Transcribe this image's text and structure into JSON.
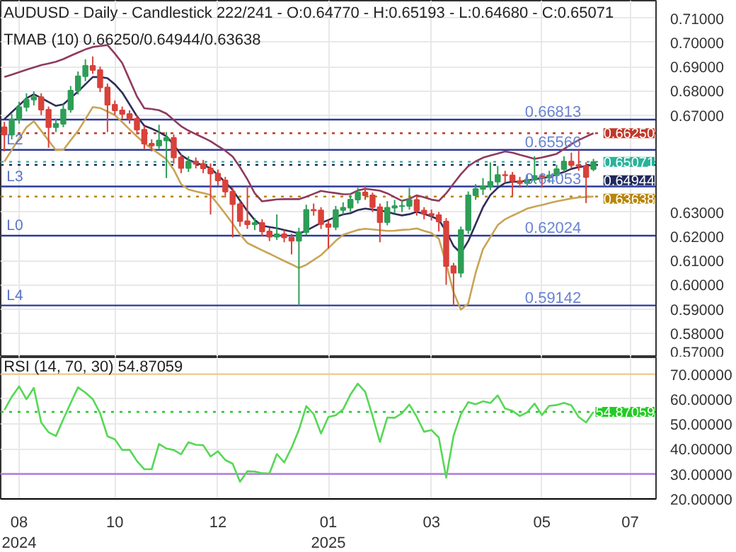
{
  "chart_data": [
    {
      "type": "candlestick",
      "title": "AUDUSD - Daily - Candlestick    222/241 - O:0.64770 - H:0.65193 - L:0.64680 - C:0.65071",
      "annotations": [
        "TMAB (10)   0.66250/0.64944/0.63638",
        {
          "text": "L2",
          "y": 0.65566
        },
        {
          "text": "L3",
          "y": 0.64053
        },
        {
          "text": "L0",
          "y": 0.62024
        },
        {
          "text": "L4",
          "y": 0.59142
        }
      ],
      "categories": [
        null,
        null,
        null,
        null,
        null,
        null,
        null,
        null,
        null,
        null,
        null,
        null,
        null,
        null,
        null,
        null,
        null,
        null,
        null,
        null,
        null,
        null,
        null,
        null,
        null,
        null,
        null,
        null,
        null,
        null,
        null,
        null,
        null,
        null,
        null,
        null,
        null,
        null,
        null,
        null,
        null,
        null,
        null,
        null,
        null,
        null,
        null,
        null,
        null,
        null,
        null,
        null,
        null,
        null,
        null,
        null,
        null,
        null,
        null,
        null,
        null,
        null,
        null,
        null,
        null,
        null,
        null,
        null,
        null,
        null,
        null,
        null,
        null,
        null,
        null,
        null,
        null,
        null,
        null,
        null,
        null,
        null,
        null,
        null,
        null,
        null
      ],
      "ohlc": [
        [
          0.665,
          0.6672,
          0.655,
          0.6619
        ],
        [
          0.6619,
          0.6705,
          0.66,
          0.6682
        ],
        [
          0.6682,
          0.6755,
          0.6665,
          0.6733
        ],
        [
          0.6733,
          0.679,
          0.6715,
          0.6764
        ],
        [
          0.6764,
          0.6798,
          0.674,
          0.6774
        ],
        [
          0.6774,
          0.679,
          0.67,
          0.6722
        ],
        [
          0.6722,
          0.6735,
          0.6565,
          0.665
        ],
        [
          0.665,
          0.6685,
          0.663,
          0.6664
        ],
        [
          0.6664,
          0.6745,
          0.665,
          0.6723
        ],
        [
          0.6723,
          0.682,
          0.671,
          0.6801
        ],
        [
          0.6801,
          0.688,
          0.6785,
          0.686
        ],
        [
          0.686,
          0.693,
          0.684,
          0.6903
        ],
        [
          0.6903,
          0.6942,
          0.687,
          0.6886
        ],
        [
          0.6886,
          0.69,
          0.6795,
          0.6814
        ],
        [
          0.6814,
          0.683,
          0.663,
          0.6743
        ],
        [
          0.6743,
          0.676,
          0.67,
          0.6719
        ],
        [
          0.6719,
          0.6735,
          0.6685,
          0.6705
        ],
        [
          0.6705,
          0.672,
          0.6665,
          0.6685
        ],
        [
          0.6685,
          0.67,
          0.662,
          0.664
        ],
        [
          0.664,
          0.6655,
          0.656,
          0.6582
        ],
        [
          0.6582,
          0.66,
          0.655,
          0.6574
        ],
        [
          0.6574,
          0.666,
          0.656,
          0.6595
        ],
        [
          0.6595,
          0.663,
          0.644,
          0.6606
        ],
        [
          0.6606,
          0.662,
          0.65,
          0.6525
        ],
        [
          0.6525,
          0.654,
          0.646,
          0.6481
        ],
        [
          0.6481,
          0.653,
          0.6465,
          0.6508
        ],
        [
          0.6508,
          0.6525,
          0.648,
          0.6499
        ],
        [
          0.6499,
          0.6515,
          0.646,
          0.648
        ],
        [
          0.648,
          0.65,
          0.629,
          0.6459
        ],
        [
          0.6459,
          0.6475,
          0.641,
          0.643
        ],
        [
          0.643,
          0.6445,
          0.636,
          0.6384
        ],
        [
          0.6384,
          0.64,
          0.6195,
          0.6332
        ],
        [
          0.6332,
          0.6345,
          0.624,
          0.6262
        ],
        [
          0.6262,
          0.641,
          0.623,
          0.6249
        ],
        [
          0.6249,
          0.6275,
          0.6225,
          0.6255
        ],
        [
          0.6255,
          0.627,
          0.62,
          0.622
        ],
        [
          0.622,
          0.6235,
          0.618,
          0.6198
        ],
        [
          0.6198,
          0.629,
          0.6185,
          0.6208
        ],
        [
          0.6208,
          0.6225,
          0.6175,
          0.6195
        ],
        [
          0.6195,
          0.621,
          0.6125,
          0.6181
        ],
        [
          0.6181,
          0.6235,
          0.5914,
          0.6217
        ],
        [
          0.6217,
          0.633,
          0.6205,
          0.6309
        ],
        [
          0.6309,
          0.6335,
          0.6285,
          0.6307
        ],
        [
          0.6307,
          0.632,
          0.623,
          0.625
        ],
        [
          0.625,
          0.6265,
          0.615,
          0.6238
        ],
        [
          0.6238,
          0.6325,
          0.6225,
          0.6308
        ],
        [
          0.6308,
          0.634,
          0.629,
          0.6318
        ],
        [
          0.6318,
          0.637,
          0.63,
          0.6351
        ],
        [
          0.6351,
          0.64,
          0.6335,
          0.6381
        ],
        [
          0.6381,
          0.641,
          0.635,
          0.6369
        ],
        [
          0.6369,
          0.638,
          0.63,
          0.632
        ],
        [
          0.632,
          0.6335,
          0.6175,
          0.6258
        ],
        [
          0.6258,
          0.6345,
          0.6245,
          0.6318
        ],
        [
          0.6318,
          0.635,
          0.6295,
          0.6324
        ],
        [
          0.6324,
          0.635,
          0.63,
          0.6325
        ],
        [
          0.6325,
          0.64,
          0.631,
          0.635
        ],
        [
          0.635,
          0.6365,
          0.6285,
          0.6306
        ],
        [
          0.6306,
          0.632,
          0.627,
          0.6292
        ],
        [
          0.6292,
          0.631,
          0.6265,
          0.6287
        ],
        [
          0.6287,
          0.63,
          0.622,
          0.6261
        ],
        [
          0.6261,
          0.6275,
          0.6,
          0.6077
        ],
        [
          0.6077,
          0.609,
          0.5914,
          0.6049
        ],
        [
          0.6049,
          0.624,
          0.603,
          0.6226
        ],
        [
          0.6226,
          0.6385,
          0.621,
          0.6369
        ],
        [
          0.6369,
          0.6415,
          0.635,
          0.6395
        ],
        [
          0.6395,
          0.644,
          0.637,
          0.6407
        ],
        [
          0.6407,
          0.6505,
          0.639,
          0.6425
        ],
        [
          0.6425,
          0.649,
          0.641,
          0.6453
        ],
        [
          0.6453,
          0.647,
          0.642,
          0.6451
        ],
        [
          0.6451,
          0.6465,
          0.6365,
          0.6428
        ],
        [
          0.6428,
          0.6445,
          0.64,
          0.6419
        ],
        [
          0.6419,
          0.6455,
          0.6405,
          0.6434
        ],
        [
          0.6434,
          0.653,
          0.642,
          0.6449
        ],
        [
          0.6449,
          0.646,
          0.64,
          0.6442
        ],
        [
          0.6442,
          0.647,
          0.642,
          0.6451
        ],
        [
          0.6451,
          0.6495,
          0.6435,
          0.6477
        ],
        [
          0.6477,
          0.653,
          0.6465,
          0.6508
        ],
        [
          0.6508,
          0.6545,
          0.648,
          0.6494
        ],
        [
          0.6494,
          0.6555,
          0.647,
          0.649
        ],
        [
          0.649,
          0.6505,
          0.6337,
          0.6444
        ],
        [
          0.6477,
          0.65193,
          0.6468,
          0.65071
        ],
        null,
        null,
        null,
        null,
        null
      ],
      "colors": [
        "#d9413a",
        "#2e9e57",
        "#2e9e57",
        "#2e9e57",
        "#2e9e57",
        "#d9413a",
        "#d9413a",
        "#2e9e57",
        "#2e9e57",
        "#2e9e57",
        "#2e9e57",
        "#2e9e57",
        "#d9413a",
        "#d9413a",
        "#d9413a",
        "#d9413a",
        "#d9413a",
        "#d9413a",
        "#d9413a",
        "#d9413a",
        "#d9413a",
        "#2e9e57",
        "#2e9e57",
        "#d9413a",
        "#d9413a",
        "#2e9e57",
        "#d9413a",
        "#d9413a",
        "#d9413a",
        "#d9413a",
        "#d9413a",
        "#d9413a",
        "#d9413a",
        "#d9413a",
        "#2e9e57",
        "#d9413a",
        "#d9413a",
        "#2e9e57",
        "#d9413a",
        "#d9413a",
        "#2e9e57",
        "#2e9e57",
        "#d9413a",
        "#d9413a",
        "#d9413a",
        "#2e9e57",
        "#2e9e57",
        "#2e9e57",
        "#2e9e57",
        "#d9413a",
        "#d9413a",
        "#d9413a",
        "#2e9e57",
        "#2e9e57",
        "#2e9e57",
        "#2e9e57",
        "#d9413a",
        "#d9413a",
        "#d9413a",
        "#d9413a",
        "#d9413a",
        "#d9413a",
        "#2e9e57",
        "#2e9e57",
        "#2e9e57",
        "#2e9e57",
        "#2e9e57",
        "#2e9e57",
        "#d9413a",
        "#d9413a",
        "#d9413a",
        "#2e9e57",
        "#2e9e57",
        "#d9413a",
        "#2e9e57",
        "#2e9e57",
        "#2e9e57",
        "#d9413a",
        "#d9413a",
        "#d9413a",
        "#2e9e57",
        null,
        null,
        null,
        null,
        null
      ],
      "series": [
        {
          "type": "line",
          "color": "#8e3b5e",
          "values": [
            0.6857,
            0.6867,
            0.6877,
            0.6887,
            0.6897,
            0.6906,
            0.6913,
            0.692,
            0.6931,
            0.6945,
            0.6958,
            0.6971,
            0.6981,
            0.6985,
            0.6989,
            0.6954,
            0.6915,
            0.6846,
            0.6777,
            0.6728,
            0.6725,
            0.672,
            0.6706,
            0.668,
            0.6654,
            0.6636,
            0.6621,
            0.6607,
            0.6592,
            0.6572,
            0.6553,
            0.6529,
            0.6485,
            0.6435,
            0.6377,
            0.6344,
            0.6348,
            0.6352,
            0.6353,
            0.6353,
            0.6353,
            0.6363,
            0.6375,
            0.6387,
            0.6382,
            0.6378,
            0.6373,
            0.6374,
            0.6389,
            0.6396,
            0.6392,
            0.6388,
            0.6377,
            0.6361,
            0.6346,
            0.6354,
            0.6369,
            0.6361,
            0.6351,
            0.6346,
            0.6377,
            0.6417,
            0.6456,
            0.6489,
            0.6509,
            0.6524,
            0.6533,
            0.6541,
            0.655,
            0.6545,
            0.6536,
            0.6528,
            0.6519,
            0.6525,
            0.6532,
            0.654,
            0.656,
            0.658,
            0.6597,
            0.6611,
            0.6625,
            null,
            null,
            null,
            null,
            null
          ]
        },
        {
          "type": "line",
          "color": "#2d2d5a",
          "values": [
            0.6683,
            0.6712,
            0.674,
            0.6769,
            0.6786,
            0.6771,
            0.6754,
            0.6738,
            0.6744,
            0.6771,
            0.6797,
            0.6827,
            0.6857,
            0.6857,
            0.6852,
            0.6827,
            0.6793,
            0.6744,
            0.6695,
            0.6656,
            0.6644,
            0.663,
            0.6612,
            0.6578,
            0.6535,
            0.6515,
            0.6503,
            0.6493,
            0.6481,
            0.6452,
            0.6423,
            0.6391,
            0.6347,
            0.6304,
            0.6267,
            0.6243,
            0.6238,
            0.6233,
            0.6226,
            0.6219,
            0.6211,
            0.6223,
            0.6239,
            0.6255,
            0.6267,
            0.628,
            0.629,
            0.6295,
            0.6308,
            0.6314,
            0.631,
            0.6307,
            0.63,
            0.6292,
            0.6286,
            0.6291,
            0.6301,
            0.6292,
            0.6282,
            0.6268,
            0.622,
            0.616,
            0.613,
            0.618,
            0.625,
            0.632,
            0.637,
            0.64,
            0.642,
            0.6425,
            0.6425,
            0.643,
            0.6435,
            0.644,
            0.6445,
            0.6455,
            0.6465,
            0.6478,
            0.6485,
            0.649,
            0.64944,
            null,
            null,
            null,
            null,
            null
          ]
        },
        {
          "type": "line",
          "color": "#c9a454",
          "values": [
            0.6508,
            0.6556,
            0.6603,
            0.665,
            0.6675,
            0.6635,
            0.6595,
            0.6555,
            0.6556,
            0.6596,
            0.6635,
            0.6683,
            0.6733,
            0.6729,
            0.6715,
            0.67,
            0.6671,
            0.6641,
            0.6612,
            0.6584,
            0.6562,
            0.654,
            0.6518,
            0.6475,
            0.6415,
            0.6393,
            0.6385,
            0.6378,
            0.637,
            0.6332,
            0.6293,
            0.6252,
            0.6208,
            0.6172,
            0.6157,
            0.6142,
            0.6128,
            0.6113,
            0.6098,
            0.6084,
            0.6069,
            0.6082,
            0.6102,
            0.6122,
            0.6151,
            0.6181,
            0.6206,
            0.6216,
            0.6226,
            0.6231,
            0.6228,
            0.6225,
            0.6222,
            0.6223,
            0.6226,
            0.6228,
            0.6232,
            0.6222,
            0.6213,
            0.619,
            0.6086,
            0.5969,
            0.5897,
            0.5923,
            0.6049,
            0.6147,
            0.6196,
            0.6246,
            0.627,
            0.6285,
            0.6299,
            0.6314,
            0.6322,
            0.6329,
            0.6337,
            0.6344,
            0.635,
            0.6356,
            0.636,
            0.6362,
            0.63638,
            null,
            null,
            null,
            null,
            null
          ]
        }
      ],
      "ylim": [
        0.57,
        0.7172
      ],
      "yticks": [
        {
          "value": 0.57,
          "label": "0.57000"
        },
        {
          "value": 0.58,
          "label": "0.58000"
        },
        {
          "value": 0.59,
          "label": "0.59000"
        },
        {
          "value": 0.6,
          "label": "0.60000"
        },
        {
          "value": 0.61,
          "label": "0.61000"
        },
        {
          "value": 0.62,
          "label": "0.62000"
        },
        {
          "value": 0.63,
          "label": "0.63000"
        },
        {
          "value": 0.67,
          "label": "0.67000"
        },
        {
          "value": 0.68,
          "label": "0.68000"
        },
        {
          "value": 0.69,
          "label": "0.69000"
        },
        {
          "value": 0.7,
          "label": "0.70000"
        },
        {
          "value": 0.71,
          "label": "0.71000"
        }
      ],
      "ref_lines": [
        {
          "axis": "y",
          "value": 0.66813,
          "label": "0.66813",
          "color": "#2c3a9a",
          "line_style": "solid"
        },
        {
          "axis": "y",
          "value": 0.65566,
          "label": "0.65566",
          "color": "#2c3a9a",
          "line_style": "solid"
        },
        {
          "axis": "y",
          "value": 0.64053,
          "label": "0.64053",
          "color": "#2c3a9a",
          "line_style": "solid"
        },
        {
          "axis": "y",
          "value": 0.62024,
          "label": "0.62024",
          "color": "#2c3a9a",
          "line_style": "solid"
        },
        {
          "axis": "y",
          "value": 0.59142,
          "label": "0.59142",
          "color": "#2c3a9a",
          "line_style": "solid"
        },
        {
          "axis": "y",
          "value": 0.6625,
          "label": "0.66250",
          "color": "#c0392b",
          "line_style": "dotted"
        },
        {
          "axis": "y",
          "value": 0.65071,
          "label": "0.65071",
          "color": "#2bb39a",
          "line_style": "dotted"
        },
        {
          "axis": "y",
          "value": 0.64944,
          "label": "0.64944",
          "color": "#1f2a5c",
          "line_style": "dotted"
        },
        {
          "axis": "y",
          "value": 0.63638,
          "label": "0.63638",
          "color": "#b8860b",
          "line_style": "dotted"
        }
      ],
      "grid": true,
      "tick_labels": "y"
    },
    {
      "type": "line",
      "title": "RSI (14, 70, 30)   54.87059",
      "categories": [
        null,
        null,
        "08\n2024",
        null,
        null,
        null,
        null,
        null,
        null,
        null,
        null,
        null,
        null,
        null,
        null,
        "10",
        null,
        null,
        null,
        null,
        null,
        null,
        null,
        null,
        null,
        null,
        null,
        null,
        null,
        "12",
        null,
        null,
        null,
        null,
        null,
        null,
        null,
        null,
        null,
        null,
        null,
        null,
        null,
        null,
        "01\n2025",
        null,
        null,
        null,
        null,
        null,
        null,
        null,
        null,
        null,
        null,
        null,
        null,
        null,
        "03",
        null,
        null,
        null,
        null,
        null,
        null,
        null,
        null,
        null,
        null,
        null,
        null,
        null,
        null,
        "05",
        null,
        null,
        null,
        null,
        null,
        null,
        null,
        null,
        null,
        null,
        null,
        "07"
      ],
      "series": [
        {
          "color": "#55d855",
          "values": [
            55.6,
            60.9,
            65.1,
            59.9,
            64.5,
            50.6,
            46.7,
            45.2,
            51.9,
            58.4,
            64.7,
            62.6,
            60.0,
            54.3,
            45.1,
            43.9,
            39.6,
            39.7,
            35.2,
            31.9,
            31.9,
            42.0,
            40.2,
            39.6,
            37.9,
            42.7,
            41.7,
            41.5,
            37.0,
            39.1,
            35.6,
            34.1,
            26.9,
            31.1,
            31.0,
            30.3,
            30.2,
            38.0,
            34.6,
            40.5,
            47.7,
            57.2,
            54.0,
            46.2,
            52.8,
            53.5,
            55.9,
            61.8,
            66.2,
            62.9,
            53.2,
            42.8,
            52.6,
            52.5,
            54.3,
            57.8,
            52.9,
            46.9,
            47.6,
            44.6,
            28.5,
            45.3,
            53.9,
            58.8,
            57.9,
            59.1,
            58.4,
            61.5,
            56.2,
            55.3,
            53.2,
            54.7,
            58.2,
            53.6,
            57.3,
            57.6,
            58.5,
            57.5,
            52.8,
            50.6,
            54.87059,
            null,
            null,
            null,
            null,
            null
          ]
        }
      ],
      "ylim": [
        20,
        76.7
      ],
      "yticks": [
        {
          "value": 20,
          "label": "20.00000"
        },
        {
          "value": 30,
          "label": "30.00000"
        },
        {
          "value": 40,
          "label": "40.00000"
        },
        {
          "value": 50,
          "label": "50.00000"
        },
        {
          "value": 60,
          "label": "60.00000"
        },
        {
          "value": 70,
          "label": "70.00000"
        }
      ],
      "ref_lines": [
        {
          "axis": "y",
          "value": 70,
          "color": "#f3c98b",
          "line_style": "solid"
        },
        {
          "axis": "y",
          "value": 30,
          "color": "#b07fe0",
          "line_style": "solid"
        },
        {
          "axis": "y",
          "value": 54.87059,
          "label": "54.87059",
          "color": "#22cc22",
          "line_style": "dotted"
        }
      ],
      "grid": true
    }
  ]
}
